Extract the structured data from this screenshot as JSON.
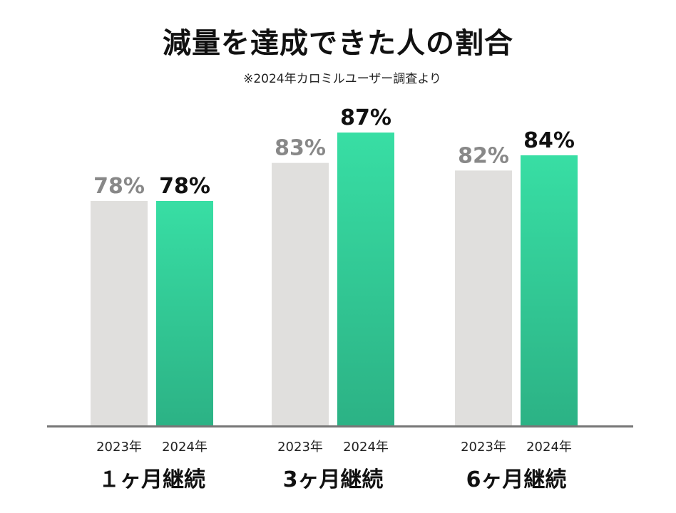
{
  "title": "減量を達成できた人の割合",
  "subtitle": "※2024年カロミルユーザー調査より",
  "colors": {
    "bar_2023": "#e0dfdd",
    "bar_2024_top": "#38dea4",
    "bar_2024_bottom": "#2cb285",
    "label_2023": "#888888",
    "label_2024": "#111111",
    "axis": "#777777"
  },
  "chart_data": {
    "type": "bar",
    "title": "減量を達成できた人の割合",
    "subtitle": "※2024年カロミルユーザー調査より",
    "categories": [
      "１ヶ月継続",
      "3ヶ月継続",
      "6ヶ月継続"
    ],
    "series": [
      {
        "name": "2023年",
        "values": [
          78,
          83,
          82
        ],
        "labels": [
          "78%",
          "83%",
          "82%"
        ]
      },
      {
        "name": "2024年",
        "values": [
          78,
          87,
          84
        ],
        "labels": [
          "78%",
          "87%",
          "84%"
        ]
      }
    ],
    "unit": "%",
    "ylim": [
      0,
      100
    ],
    "grid": false,
    "legend": "none"
  }
}
